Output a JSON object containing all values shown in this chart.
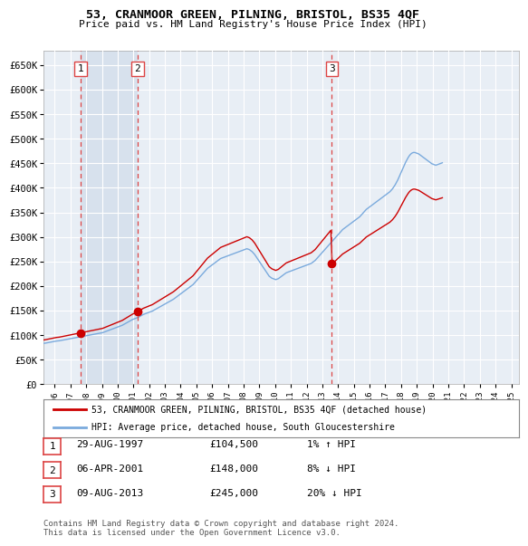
{
  "title": "53, CRANMOOR GREEN, PILNING, BRISTOL, BS35 4QF",
  "subtitle": "Price paid vs. HM Land Registry's House Price Index (HPI)",
  "ylabel_ticks": [
    "£0",
    "£50K",
    "£100K",
    "£150K",
    "£200K",
    "£250K",
    "£300K",
    "£350K",
    "£400K",
    "£450K",
    "£500K",
    "£550K",
    "£600K",
    "£650K"
  ],
  "ytick_values": [
    0,
    50000,
    100000,
    150000,
    200000,
    250000,
    300000,
    350000,
    400000,
    450000,
    500000,
    550000,
    600000,
    650000
  ],
  "ylim": [
    0,
    680000
  ],
  "xlim_start": 1995.3,
  "xlim_end": 2025.5,
  "chart_bg": "#e8eef5",
  "grid_color": "#ffffff",
  "sale_color": "#cc0000",
  "hpi_color": "#7aaadd",
  "vline_color": "#dd4444",
  "shade_color": "#d0dcea",
  "legend_label_sale": "53, CRANMOOR GREEN, PILNING, BRISTOL, BS35 4QF (detached house)",
  "legend_label_hpi": "HPI: Average price, detached house, South Gloucestershire",
  "transactions": [
    {
      "label": "1",
      "date": 1997.65,
      "price": 104500
    },
    {
      "label": "2",
      "date": 2001.27,
      "price": 148000
    },
    {
      "label": "3",
      "date": 2013.6,
      "price": 245000
    }
  ],
  "transaction_table": [
    [
      "1",
      "29-AUG-1997",
      "£104,500",
      "1% ↑ HPI"
    ],
    [
      "2",
      "06-APR-2001",
      "£148,000",
      "8% ↓ HPI"
    ],
    [
      "3",
      "09-AUG-2013",
      "£245,000",
      "20% ↓ HPI"
    ]
  ],
  "footer": "Contains HM Land Registry data © Crown copyright and database right 2024.\nThis data is licensed under the Open Government Licence v3.0.",
  "hpi_monthly": {
    "start_year": 1995,
    "start_month": 1,
    "values": [
      82000,
      82500,
      83000,
      83200,
      83500,
      84000,
      84500,
      85000,
      85500,
      86000,
      86500,
      87000,
      87500,
      88000,
      88200,
      88500,
      89000,
      89500,
      90000,
      90500,
      91000,
      91500,
      92000,
      92500,
      93000,
      93500,
      94000,
      94500,
      95000,
      95500,
      96000,
      96500,
      97000,
      97500,
      98000,
      98500,
      99000,
      99500,
      100000,
      100500,
      101000,
      101500,
      102000,
      102500,
      103000,
      103500,
      104000,
      104500,
      105000,
      106000,
      107000,
      108000,
      109000,
      110000,
      111000,
      112000,
      113000,
      114000,
      115000,
      116000,
      117000,
      118000,
      119000,
      120000,
      121500,
      123000,
      124500,
      126000,
      127500,
      129000,
      130500,
      132000,
      133000,
      134000,
      135000,
      136000,
      137500,
      139000,
      140500,
      142000,
      143000,
      144000,
      145000,
      146000,
      147000,
      148000,
      149000,
      150500,
      152000,
      153500,
      155000,
      156500,
      158000,
      159500,
      161000,
      162500,
      164000,
      165500,
      167000,
      168500,
      170000,
      171500,
      173000,
      175000,
      177000,
      179000,
      181000,
      183000,
      185000,
      187000,
      189000,
      191000,
      193000,
      195000,
      197000,
      199000,
      201000,
      203000,
      206000,
      209000,
      212000,
      215000,
      218000,
      221000,
      224000,
      227000,
      230000,
      233000,
      236000,
      238000,
      240000,
      242000,
      244000,
      246000,
      248000,
      250000,
      252000,
      254000,
      256000,
      257000,
      258000,
      259000,
      260000,
      261000,
      262000,
      263000,
      264000,
      265000,
      266000,
      267000,
      268000,
      269000,
      270000,
      271000,
      272000,
      273000,
      274000,
      275000,
      276000,
      275000,
      274000,
      272000,
      270000,
      267000,
      264000,
      260000,
      256000,
      252000,
      248000,
      244000,
      240000,
      236000,
      232000,
      228000,
      224000,
      220000,
      218000,
      216000,
      215000,
      214000,
      213000,
      214000,
      215000,
      217000,
      219000,
      221000,
      223000,
      225000,
      227000,
      228000,
      229000,
      230000,
      231000,
      232000,
      233000,
      234000,
      235000,
      236000,
      237000,
      238000,
      239000,
      240000,
      241000,
      242000,
      243000,
      244000,
      245000,
      246000,
      248000,
      250000,
      252000,
      255000,
      258000,
      261000,
      264000,
      267000,
      270000,
      273000,
      276000,
      279000,
      282000,
      285000,
      288000,
      291000,
      294000,
      297000,
      300000,
      303000,
      306000,
      309000,
      312000,
      315000,
      317000,
      319000,
      321000,
      323000,
      325000,
      327000,
      329000,
      331000,
      333000,
      335000,
      337000,
      339000,
      341000,
      344000,
      347000,
      350000,
      353000,
      356000,
      358000,
      360000,
      362000,
      364000,
      366000,
      368000,
      370000,
      372000,
      374000,
      376000,
      378000,
      380000,
      382000,
      384000,
      386000,
      388000,
      390000,
      392000,
      395000,
      398000,
      402000,
      406000,
      411000,
      416000,
      422000,
      428000,
      434000,
      440000,
      446000,
      452000,
      457000,
      462000,
      466000,
      469000,
      471000,
      472000,
      472000,
      471000,
      470000,
      469000,
      467000,
      465000,
      463000,
      461000,
      459000,
      457000,
      455000,
      453000,
      451000,
      449000,
      448000,
      447000,
      446000,
      447000,
      448000,
      449000,
      450000,
      451000
    ]
  }
}
